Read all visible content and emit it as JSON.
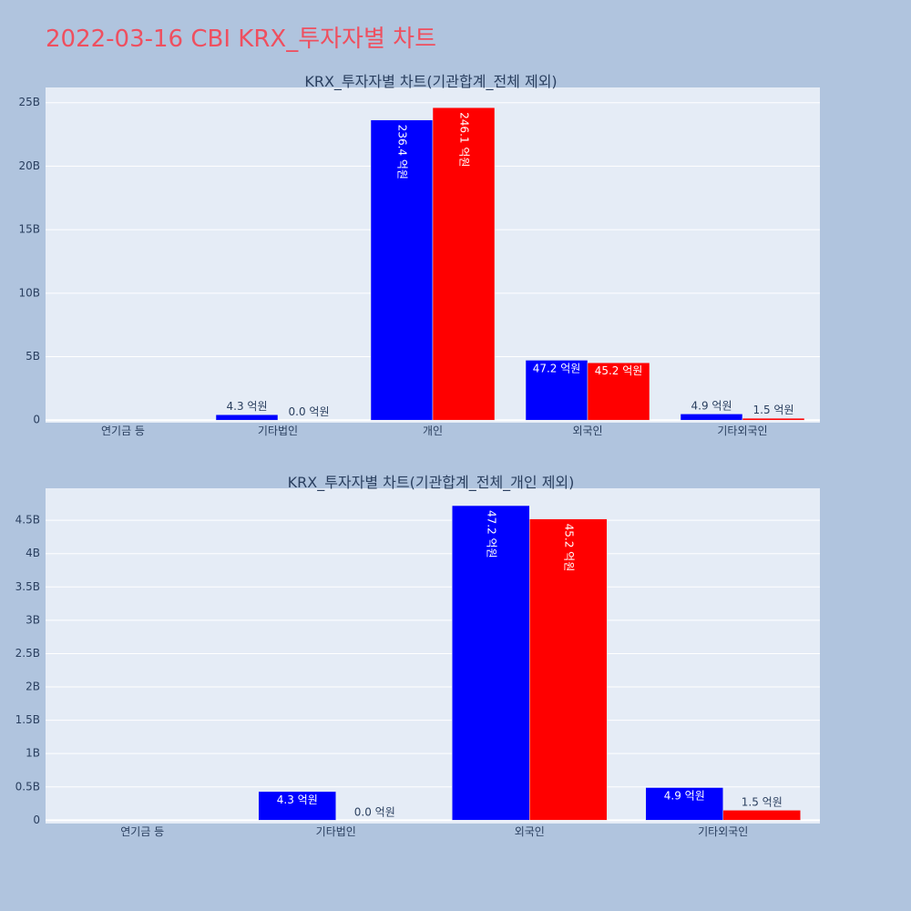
{
  "page_title": "2022-03-16 CBI KRX_투자자별 차트",
  "colors": {
    "background": "#b0c4de",
    "plot_bg": "#e5ecf6",
    "grid": "#ffffff",
    "title": "#ef4f5f",
    "text": "#2a3f5f"
  },
  "chart_data": [
    {
      "type": "bar",
      "title": "KRX_투자자별 차트(기관합계_전체 제외)",
      "categories": [
        "연기금 등",
        "기타법인",
        "개인",
        "외국인",
        "기타외국인"
      ],
      "ylim": [
        -0.2,
        26.2
      ],
      "yunit": "B",
      "yticks": [
        0,
        5,
        10,
        15,
        20,
        25
      ],
      "ytick_labels": [
        "0",
        "5B",
        "10B",
        "15B",
        "20B",
        "25B"
      ],
      "grid": true,
      "series": [
        {
          "color": "#0000ff",
          "values": [
            0,
            0.43,
            23.64,
            4.72,
            0.49
          ],
          "labels": [
            "",
            "4.3 억원",
            "236.4 억원",
            "47.2 억원",
            "4.9 억원"
          ]
        },
        {
          "color": "#ff0000",
          "values": [
            0,
            0.0,
            24.61,
            4.52,
            0.15
          ],
          "labels": [
            "",
            "0.0 억원",
            "246.1 억원",
            "45.2 억원",
            "1.5 억원"
          ]
        }
      ]
    },
    {
      "type": "bar",
      "title": "KRX_투자자별 차트(기관합계_전체_개인 제외)",
      "categories": [
        "연기금 등",
        "기타법인",
        "외국인",
        "기타외국인"
      ],
      "ylim": [
        -0.05,
        4.98
      ],
      "yunit": "B",
      "yticks": [
        0,
        0.5,
        1,
        1.5,
        2,
        2.5,
        3,
        3.5,
        4,
        4.5
      ],
      "ytick_labels": [
        "0",
        "0.5B",
        "1B",
        "1.5B",
        "2B",
        "2.5B",
        "3B",
        "3.5B",
        "4B",
        "4.5B"
      ],
      "grid": true,
      "series": [
        {
          "color": "#0000ff",
          "values": [
            0,
            0.43,
            4.72,
            0.49
          ],
          "labels": [
            "",
            "4.3 억원",
            "47.2 억원",
            "4.9 억원"
          ]
        },
        {
          "color": "#ff0000",
          "values": [
            0,
            0.0,
            4.52,
            0.15
          ],
          "labels": [
            "",
            "0.0 억원",
            "45.2 억원",
            "1.5 억원"
          ]
        }
      ]
    }
  ]
}
